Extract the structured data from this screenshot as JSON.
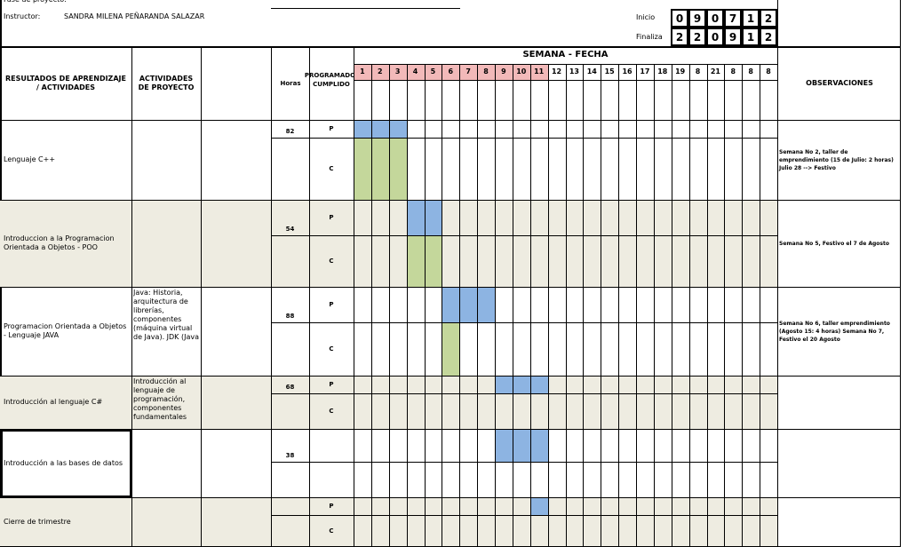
{
  "header": {
    "phase_label": "Fase de proyecto:",
    "instructor_label": "Instructor:",
    "instructor": "SANDRA MILENA PEÑARANDA SALAZAR",
    "start_label": "Inicio",
    "start_digits": [
      "0",
      "9",
      "0",
      "7",
      "1",
      "2"
    ],
    "end_label": "Finaliza",
    "end_digits": [
      "2",
      "2",
      "0",
      "9",
      "1",
      "2"
    ]
  },
  "table": {
    "col_results": "RESULTADOS DE APRENDIZAJE / ACTIVIDADES",
    "col_activities": "ACTIVIDADES DE PROYECTO",
    "col_hours": "Horas",
    "col_status": "PROGRAMADO-CUMPLIDO",
    "col_weeks": "SEMANA - FECHA",
    "col_obs": "OBSERVACIONES",
    "weeks": [
      "1",
      "2",
      "3",
      "4",
      "5",
      "6",
      "7",
      "8",
      "9",
      "10",
      "11",
      "12",
      "13",
      "14",
      "15",
      "16",
      "17",
      "18",
      "19",
      "8",
      "21",
      "8",
      "8",
      "8"
    ],
    "highlight_through": 11,
    "highlight_color": "#f2b9b9",
    "shade_color": "#eeece1",
    "plan_color": "#8db4e2",
    "done_color": "#c4d79b",
    "rows": [
      {
        "name": "Lenguaje C++",
        "hours": "82",
        "p_label": "P",
        "c_label": "C",
        "plan": [
          1,
          2,
          3
        ],
        "done": [
          1,
          2,
          3
        ],
        "obs": "Semana No 2, taller de emprendimiento (15 de Julio: 2 horas) Julio 28 --> Festivo",
        "shaded": false
      },
      {
        "name": "Introduccion a la Programacion Orientada a Objetos - POO",
        "hours": "54",
        "p_label": "P",
        "c_label": "C",
        "plan": [
          4,
          5
        ],
        "done": [
          4,
          5
        ],
        "obs": "Semana No 5, Festivo el 7 de Agosto",
        "shaded": true
      },
      {
        "name": "Programacion Orientada a Objetos - Lenguaje JAVA",
        "activities": "Java: Historia, arquitectura de librerías, componentes (máquina virtual de Java). JDK (Java",
        "hours": "88",
        "p_label": "P",
        "c_label": "C",
        "plan": [
          6,
          7,
          8
        ],
        "done": [
          6
        ],
        "obs": "Semana No 6, taller emprendimiento (Agosto 15: 4 horas) Semana No 7, Festivo el 20 Agosto",
        "shaded": false
      },
      {
        "name": "Introducción al lenguaje C#",
        "activities": "Introducción al lenguaje de programación, componentes fundamentales",
        "hours": "68",
        "p_label": "P",
        "c_label": "C",
        "plan": [
          9,
          10,
          11
        ],
        "done": [],
        "shaded": true
      },
      {
        "name": "Introducción a las bases de datos",
        "hours": "38",
        "plan": [
          9,
          10,
          11
        ],
        "done": [],
        "shaded": false
      },
      {
        "name": "Cierre de trimestre",
        "p_label": "P",
        "c_label": "C",
        "plan": [
          11
        ],
        "done": [],
        "shaded": true
      }
    ]
  }
}
